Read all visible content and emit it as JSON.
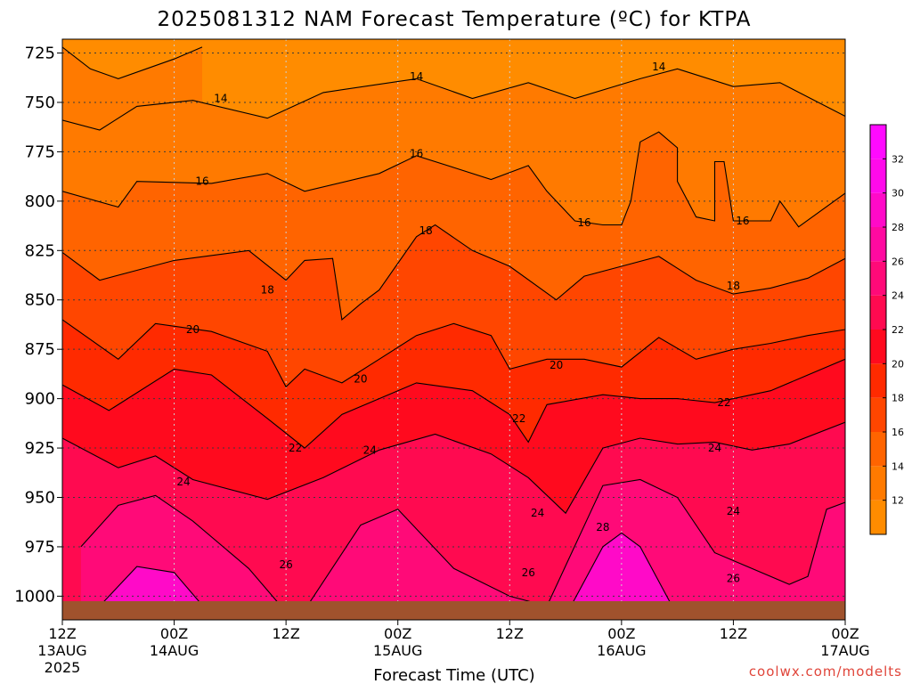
{
  "chart_data": {
    "type": "heatmap",
    "title": "2025081312 NAM Forecast Temperature (ºC) for KTPA",
    "xlabel": "Forecast Time (UTC)",
    "ylabel": "",
    "credit": "coolwx.com/modelts",
    "x_ticks": [
      {
        "top": "12Z",
        "bottom": "13AUG",
        "extra": "2025",
        "hour": 0
      },
      {
        "top": "00Z",
        "bottom": "14AUG",
        "extra": "",
        "hour": 12
      },
      {
        "top": "12Z",
        "bottom": "",
        "extra": "",
        "hour": 24
      },
      {
        "top": "00Z",
        "bottom": "15AUG",
        "extra": "",
        "hour": 36
      },
      {
        "top": "12Z",
        "bottom": "",
        "extra": "",
        "hour": 48
      },
      {
        "top": "00Z",
        "bottom": "16AUG",
        "extra": "",
        "hour": 60
      },
      {
        "top": "12Z",
        "bottom": "",
        "extra": "",
        "hour": 72
      },
      {
        "top": "00Z",
        "bottom": "17AUG",
        "extra": "",
        "hour": 84
      }
    ],
    "xlim": [
      0,
      84
    ],
    "y_ticks": [
      725,
      750,
      775,
      800,
      825,
      850,
      875,
      900,
      925,
      950,
      975,
      1000
    ],
    "ylim": [
      1012,
      718
    ],
    "levels": [
      12,
      14,
      16,
      18,
      20,
      22,
      24,
      26,
      28,
      30,
      32
    ],
    "colorbar_colors": [
      "#ff8c00",
      "#ff7a00",
      "#ff6400",
      "#ff4600",
      "#ff2a00",
      "#ff0a1e",
      "#ff0a50",
      "#ff0a78",
      "#ff0aa0",
      "#ff0ac8",
      "#ff0aeb",
      "#ff0aff"
    ],
    "ground_color": "#a0522d",
    "contours": [
      {
        "value": 14,
        "label": "14",
        "points": [
          [
            0,
            722
          ],
          [
            3,
            733
          ],
          [
            6,
            738
          ],
          [
            9,
            733
          ],
          [
            12,
            728
          ],
          [
            15,
            722
          ]
        ]
      },
      {
        "value": 14,
        "label": "14",
        "points": [
          [
            0,
            759
          ],
          [
            4,
            764
          ],
          [
            8,
            752
          ],
          [
            14,
            749
          ],
          [
            22,
            758
          ],
          [
            28,
            745
          ],
          [
            38,
            738
          ],
          [
            44,
            748
          ],
          [
            50,
            740
          ],
          [
            55,
            748
          ],
          [
            62,
            738
          ],
          [
            66,
            733
          ],
          [
            72,
            742
          ],
          [
            77,
            740
          ],
          [
            84,
            757
          ]
        ]
      },
      {
        "value": 16,
        "label": "16",
        "points": [
          [
            0,
            795
          ],
          [
            6,
            803
          ],
          [
            8,
            790
          ],
          [
            16,
            791
          ],
          [
            22,
            786
          ],
          [
            26,
            795
          ],
          [
            34,
            786
          ],
          [
            38,
            777
          ],
          [
            42,
            783
          ],
          [
            46,
            789
          ],
          [
            50,
            782
          ],
          [
            52,
            795
          ],
          [
            55,
            810
          ],
          [
            58,
            812
          ],
          [
            60,
            812
          ],
          [
            61,
            800
          ],
          [
            62,
            770
          ],
          [
            64,
            765
          ],
          [
            66,
            773
          ],
          [
            66,
            790
          ],
          [
            68,
            808
          ],
          [
            70,
            810
          ],
          [
            70,
            780
          ],
          [
            71,
            780
          ],
          [
            72,
            810
          ],
          [
            76,
            810
          ],
          [
            77,
            800
          ],
          [
            79,
            813
          ],
          [
            84,
            796
          ]
        ]
      },
      {
        "value": 18,
        "label": "18",
        "points": [
          [
            0,
            826
          ],
          [
            4,
            840
          ],
          [
            8,
            835
          ],
          [
            12,
            830
          ],
          [
            20,
            825
          ],
          [
            24,
            840
          ],
          [
            26,
            830
          ],
          [
            29,
            829
          ],
          [
            30,
            860
          ],
          [
            32,
            852
          ],
          [
            34,
            845
          ],
          [
            38,
            818
          ],
          [
            40,
            812
          ],
          [
            44,
            825
          ],
          [
            48,
            833
          ],
          [
            53,
            850
          ],
          [
            56,
            838
          ],
          [
            60,
            833
          ],
          [
            64,
            828
          ],
          [
            68,
            840
          ],
          [
            72,
            847
          ],
          [
            76,
            844
          ],
          [
            80,
            839
          ],
          [
            84,
            829
          ]
        ]
      },
      {
        "value": 20,
        "label": "20",
        "points": [
          [
            0,
            860
          ],
          [
            6,
            880
          ],
          [
            10,
            862
          ],
          [
            16,
            866
          ],
          [
            22,
            876
          ],
          [
            24,
            894
          ],
          [
            26,
            885
          ],
          [
            30,
            892
          ],
          [
            34,
            880
          ],
          [
            38,
            868
          ],
          [
            42,
            862
          ],
          [
            46,
            868
          ],
          [
            48,
            885
          ],
          [
            52,
            880
          ],
          [
            56,
            880
          ],
          [
            60,
            884
          ],
          [
            64,
            869
          ],
          [
            68,
            880
          ],
          [
            72,
            875
          ],
          [
            76,
            872
          ],
          [
            80,
            868
          ],
          [
            84,
            865
          ]
        ]
      },
      {
        "value": 22,
        "label": "22",
        "points": [
          [
            0,
            893
          ],
          [
            5,
            906
          ],
          [
            12,
            885
          ],
          [
            16,
            888
          ],
          [
            22,
            910
          ],
          [
            26,
            925
          ],
          [
            30,
            908
          ],
          [
            34,
            900
          ],
          [
            38,
            892
          ],
          [
            44,
            896
          ],
          [
            48,
            908
          ],
          [
            50,
            922
          ],
          [
            52,
            903
          ],
          [
            58,
            898
          ],
          [
            62,
            900
          ],
          [
            66,
            900
          ],
          [
            70,
            902
          ],
          [
            76,
            896
          ],
          [
            80,
            888
          ],
          [
            84,
            880
          ]
        ]
      },
      {
        "value": 24,
        "label": "24",
        "points": [
          [
            0,
            920
          ],
          [
            6,
            935
          ],
          [
            10,
            929
          ],
          [
            14,
            941
          ],
          [
            22,
            951
          ],
          [
            28,
            940
          ],
          [
            34,
            926
          ],
          [
            40,
            918
          ],
          [
            46,
            928
          ],
          [
            50,
            940
          ],
          [
            54,
            958
          ],
          [
            58,
            925
          ],
          [
            62,
            920
          ],
          [
            66,
            923
          ],
          [
            70,
            922
          ],
          [
            74,
            926
          ],
          [
            78,
            923
          ],
          [
            84,
            912
          ]
        ]
      },
      {
        "value": 26,
        "label": "26",
        "points": [
          [
            2,
            975
          ],
          [
            6,
            954
          ],
          [
            10,
            949
          ],
          [
            14,
            962
          ],
          [
            20,
            986
          ],
          [
            24,
            1008
          ]
        ]
      },
      {
        "value": 26,
        "label": "26",
        "points": [
          [
            26,
            1007
          ],
          [
            32,
            964
          ],
          [
            36,
            956
          ],
          [
            42,
            986
          ],
          [
            48,
            1000
          ],
          [
            52,
            1005
          ],
          [
            58,
            944
          ],
          [
            62,
            941
          ],
          [
            66,
            950
          ],
          [
            70,
            978
          ],
          [
            78,
            994
          ],
          [
            80,
            990
          ],
          [
            82,
            956
          ],
          [
            86,
            949
          ],
          [
            90,
            1010
          ]
        ]
      },
      {
        "value": 28,
        "label": "28",
        "points": [
          [
            4,
            1005
          ],
          [
            8,
            985
          ],
          [
            12,
            988
          ],
          [
            16,
            1010
          ]
        ]
      },
      {
        "value": 28,
        "label": "28",
        "points": [
          [
            54,
            1010
          ],
          [
            58,
            975
          ],
          [
            60,
            968
          ],
          [
            62,
            975
          ],
          [
            66,
            1010
          ]
        ]
      }
    ],
    "contour_labels": [
      {
        "text": "14",
        "x": 17,
        "y": 748
      },
      {
        "text": "14",
        "x": 38,
        "y": 737
      },
      {
        "text": "14",
        "x": 64,
        "y": 732
      },
      {
        "text": "16",
        "x": 15,
        "y": 790
      },
      {
        "text": "16",
        "x": 38,
        "y": 776
      },
      {
        "text": "16",
        "x": 56,
        "y": 811
      },
      {
        "text": "16",
        "x": 73,
        "y": 810
      },
      {
        "text": "18",
        "x": 22,
        "y": 845
      },
      {
        "text": "18",
        "x": 39,
        "y": 815
      },
      {
        "text": "18",
        "x": 72,
        "y": 843
      },
      {
        "text": "20",
        "x": 14,
        "y": 865
      },
      {
        "text": "20",
        "x": 32,
        "y": 890
      },
      {
        "text": "20",
        "x": 53,
        "y": 883
      },
      {
        "text": "22",
        "x": 25,
        "y": 925
      },
      {
        "text": "22",
        "x": 49,
        "y": 910
      },
      {
        "text": "22",
        "x": 71,
        "y": 902
      },
      {
        "text": "24",
        "x": 13,
        "y": 942
      },
      {
        "text": "24",
        "x": 33,
        "y": 926
      },
      {
        "text": "24",
        "x": 51,
        "y": 958
      },
      {
        "text": "24",
        "x": 70,
        "y": 925
      },
      {
        "text": "24",
        "x": 72,
        "y": 957
      },
      {
        "text": "26",
        "x": 24,
        "y": 984
      },
      {
        "text": "26",
        "x": 50,
        "y": 988
      },
      {
        "text": "26",
        "x": 72,
        "y": 991
      },
      {
        "text": "28",
        "x": 58,
        "y": 965
      }
    ]
  }
}
